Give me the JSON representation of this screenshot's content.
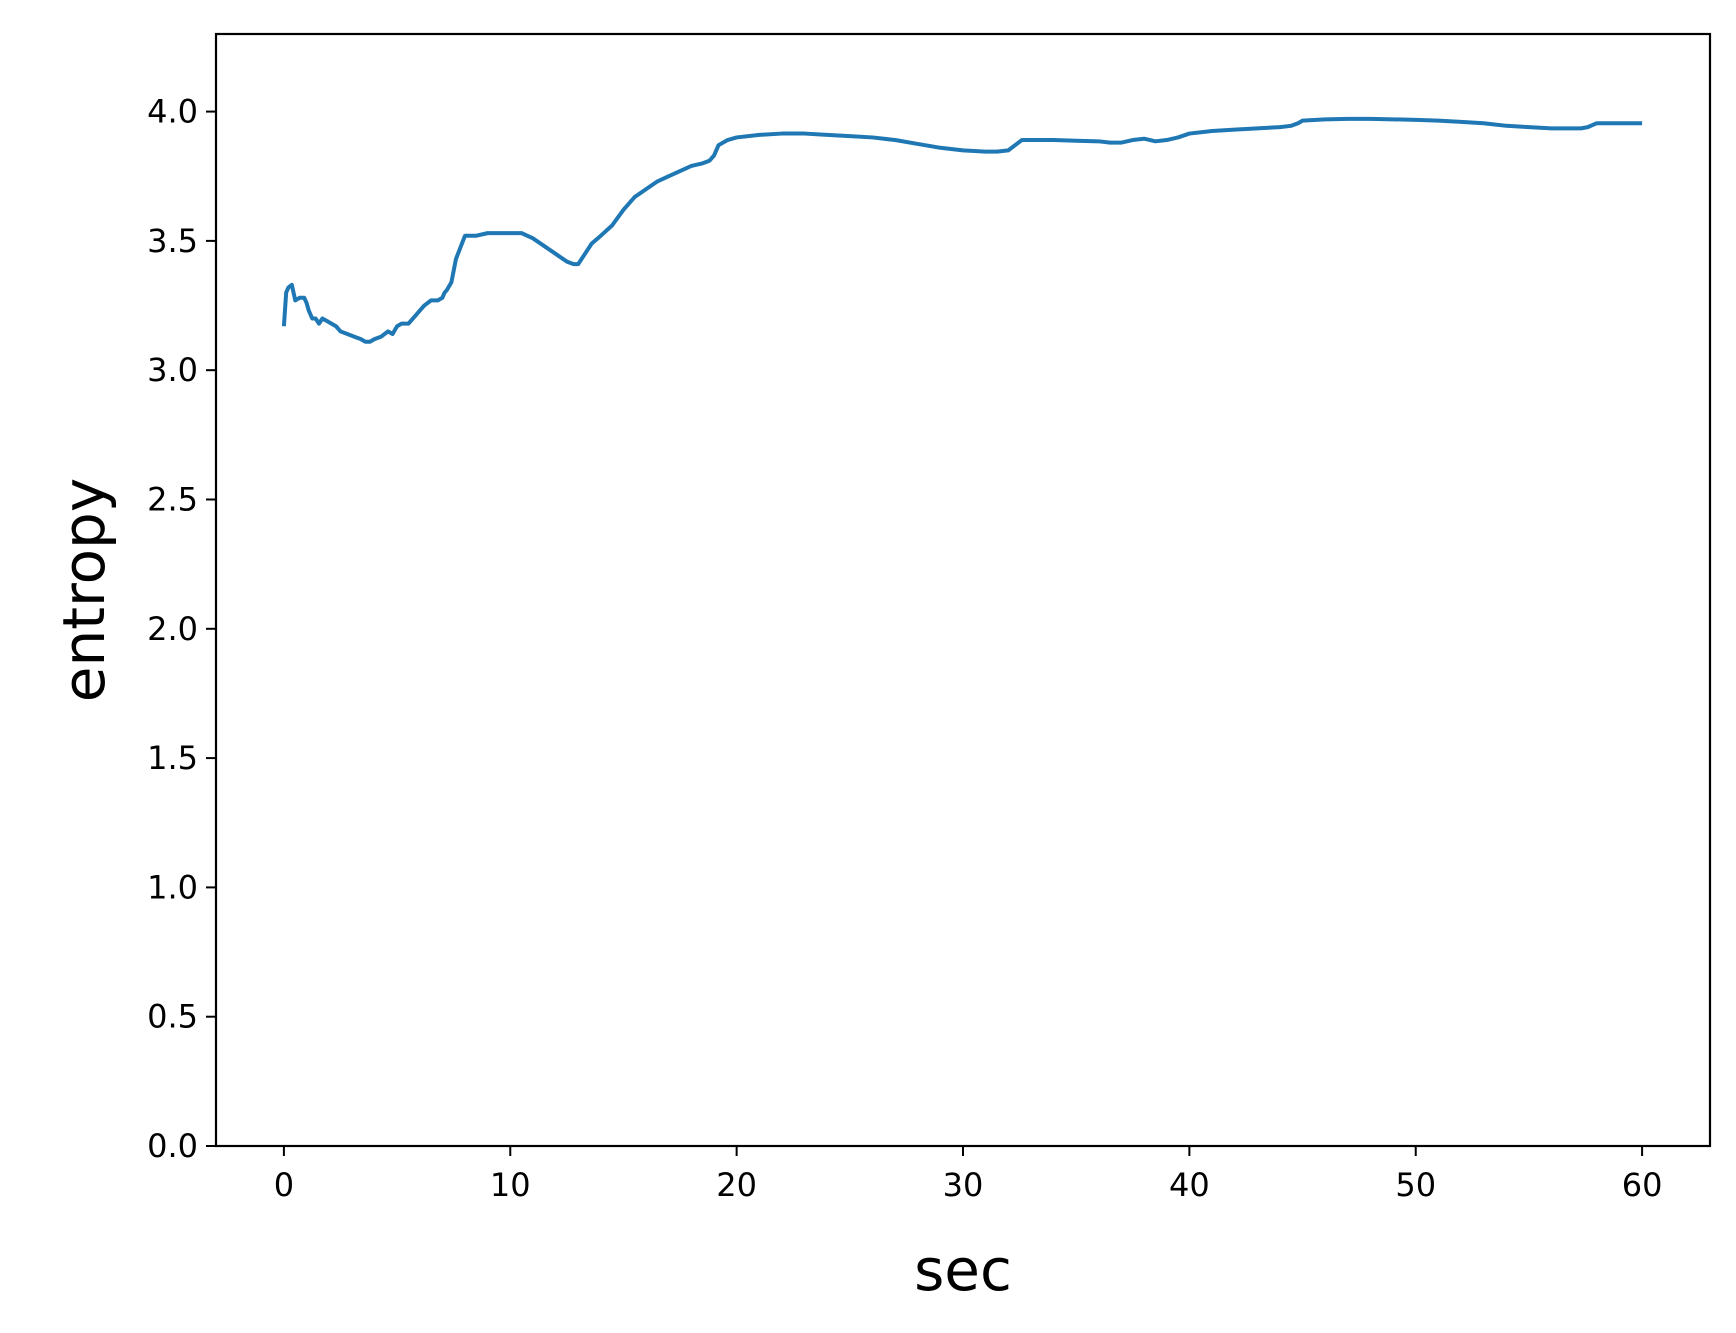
{
  "colors": {
    "series": "#1f77b4",
    "axes": "#000000",
    "background": "#ffffff"
  },
  "chart_data": {
    "type": "line",
    "title": "",
    "xlabel": "sec",
    "ylabel": "entropy",
    "xlim": [
      -3,
      63
    ],
    "ylim": [
      0,
      4.3
    ],
    "xticks": [
      0,
      10,
      20,
      30,
      40,
      50,
      60
    ],
    "xtick_labels": [
      "0",
      "10",
      "20",
      "30",
      "40",
      "50",
      "60"
    ],
    "yticks": [
      0,
      0.5,
      1.0,
      1.5,
      2.0,
      2.5,
      3.0,
      3.5,
      4.0
    ],
    "ytick_labels": [
      "0.0",
      "0.5",
      "1.0",
      "1.5",
      "2.0",
      "2.5",
      "3.0",
      "3.5",
      "4.0"
    ],
    "grid": false,
    "legend": "none",
    "series": [
      {
        "x": [
          0,
          0.1,
          0.2,
          0.35,
          0.5,
          0.7,
          0.9,
          1.0,
          1.1,
          1.25,
          1.4,
          1.55,
          1.7,
          1.9,
          2.1,
          2.3,
          2.5,
          2.8,
          3.1,
          3.4,
          3.6,
          3.8,
          4.0,
          4.3,
          4.6,
          4.8,
          5.0,
          5.2,
          5.5,
          5.8,
          6.0,
          6.2,
          6.5,
          6.8,
          7.0,
          7.1,
          7.2,
          7.4,
          7.6,
          8.0,
          8.5,
          9.0,
          9.5,
          10.0,
          10.5,
          11.0,
          11.5,
          12.0,
          12.5,
          12.8,
          13.0,
          13.3,
          13.6,
          14.0,
          14.5,
          15.0,
          15.5,
          16.0,
          16.5,
          17.0,
          17.5,
          18.0,
          18.5,
          18.8,
          19.0,
          19.2,
          19.6,
          20.0,
          21.0,
          22.0,
          23.0,
          24.0,
          25.0,
          26.0,
          27.0,
          28.0,
          29.0,
          30.0,
          31.0,
          31.5,
          32.0,
          32.3,
          32.6,
          33.0,
          34.0,
          35.0,
          36.0,
          36.5,
          37.0,
          37.5,
          38.0,
          38.5,
          39.0,
          39.5,
          40.0,
          41.0,
          42.0,
          43.0,
          44.0,
          44.5,
          44.8,
          45.0,
          46.0,
          47.0,
          48.0,
          49.0,
          50.0,
          51.0,
          52.0,
          53.0,
          54.0,
          55.0,
          56.0,
          56.5,
          57.0,
          57.3,
          57.6,
          58.0,
          59.0,
          60.0
        ],
        "y": [
          3.17,
          3.3,
          3.32,
          3.33,
          3.27,
          3.28,
          3.28,
          3.26,
          3.23,
          3.2,
          3.2,
          3.18,
          3.2,
          3.19,
          3.18,
          3.17,
          3.15,
          3.14,
          3.13,
          3.12,
          3.11,
          3.11,
          3.12,
          3.13,
          3.15,
          3.14,
          3.17,
          3.18,
          3.18,
          3.21,
          3.23,
          3.25,
          3.27,
          3.27,
          3.28,
          3.3,
          3.31,
          3.34,
          3.43,
          3.52,
          3.52,
          3.53,
          3.53,
          3.53,
          3.53,
          3.51,
          3.48,
          3.45,
          3.42,
          3.41,
          3.41,
          3.45,
          3.49,
          3.52,
          3.56,
          3.62,
          3.67,
          3.7,
          3.73,
          3.75,
          3.77,
          3.79,
          3.8,
          3.81,
          3.83,
          3.87,
          3.89,
          3.9,
          3.91,
          3.915,
          3.915,
          3.91,
          3.905,
          3.9,
          3.89,
          3.875,
          3.86,
          3.85,
          3.845,
          3.845,
          3.85,
          3.87,
          3.89,
          3.89,
          3.89,
          3.887,
          3.885,
          3.88,
          3.88,
          3.89,
          3.895,
          3.885,
          3.89,
          3.9,
          3.915,
          3.925,
          3.93,
          3.935,
          3.94,
          3.945,
          3.955,
          3.965,
          3.97,
          3.972,
          3.972,
          3.97,
          3.968,
          3.965,
          3.96,
          3.955,
          3.945,
          3.94,
          3.935,
          3.935,
          3.935,
          3.935,
          3.94,
          3.955,
          3.955,
          3.955
        ]
      }
    ]
  }
}
